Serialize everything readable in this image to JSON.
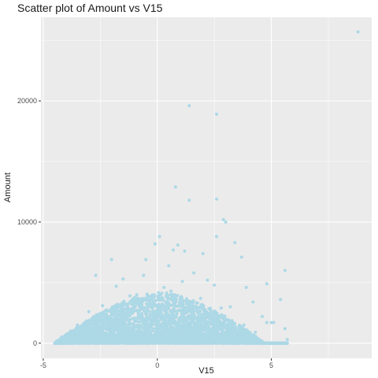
{
  "chart_data": {
    "type": "scatter",
    "title": "Scatter plot of Amount vs V15",
    "xlabel": "V15",
    "ylabel": "Amount",
    "xlim": [
      -5.1,
      9.4
    ],
    "ylim": [
      -1250,
      26900
    ],
    "x_ticks": [
      -5,
      0,
      5
    ],
    "x_tick_labels": [
      "-5",
      "0",
      "5"
    ],
    "y_ticks": [
      0,
      10000,
      20000
    ],
    "y_tick_labels": [
      "0",
      "10000",
      "20000"
    ],
    "point_color": "#add8e6",
    "panel_color": "#ebebeb",
    "grid": true,
    "legend": "none",
    "points": [
      {
        "x": 8.8,
        "y": 25700
      },
      {
        "x": 1.4,
        "y": 19600
      },
      {
        "x": 2.6,
        "y": 18900
      },
      {
        "x": 0.8,
        "y": 12900
      },
      {
        "x": 2.6,
        "y": 11900
      },
      {
        "x": 1.4,
        "y": 11800
      },
      {
        "x": 2.9,
        "y": 10200
      },
      {
        "x": 3.0,
        "y": 10000
      },
      {
        "x": 2.6,
        "y": 8800
      },
      {
        "x": 0.1,
        "y": 8800
      },
      {
        "x": 3.4,
        "y": 8300
      },
      {
        "x": 0.9,
        "y": 8100
      },
      {
        "x": -0.1,
        "y": 8200
      },
      {
        "x": 0.7,
        "y": 7700
      },
      {
        "x": 1.2,
        "y": 7600
      },
      {
        "x": 2.0,
        "y": 7400
      },
      {
        "x": 3.7,
        "y": 7100
      },
      {
        "x": -2.0,
        "y": 6900
      },
      {
        "x": -0.5,
        "y": 6900
      },
      {
        "x": 0.5,
        "y": 6400
      },
      {
        "x": 5.6,
        "y": 6000
      },
      {
        "x": -2.7,
        "y": 5600
      },
      {
        "x": 1.6,
        "y": 5800
      },
      {
        "x": 2.2,
        "y": 5200
      },
      {
        "x": 4.8,
        "y": 4900
      },
      {
        "x": 3.9,
        "y": 4600
      },
      {
        "x": 2.5,
        "y": 4800
      },
      {
        "x": -1.8,
        "y": 4700
      },
      {
        "x": -1.5,
        "y": 5300
      },
      {
        "x": 5.4,
        "y": 3600
      },
      {
        "x": 4.2,
        "y": 3400
      },
      {
        "x": -2.4,
        "y": 3100
      },
      {
        "x": 3.2,
        "y": 3000
      },
      {
        "x": -3.0,
        "y": 2600
      },
      {
        "x": 4.6,
        "y": 2200
      },
      {
        "x": 4.8,
        "y": 1700
      },
      {
        "x": 5.0,
        "y": 1700
      },
      {
        "x": 5.1,
        "y": 1700
      },
      {
        "x": -3.5,
        "y": 1500
      },
      {
        "x": 3.8,
        "y": 1500
      },
      {
        "x": -3.8,
        "y": 1000
      },
      {
        "x": 4.3,
        "y": 900
      },
      {
        "x": 5.6,
        "y": 1200
      },
      {
        "x": -4.2,
        "y": 500
      },
      {
        "x": -4.4,
        "y": 200
      },
      {
        "x": 5.7,
        "y": 300
      },
      {
        "x": 4.0,
        "y": 300
      },
      {
        "x": -2.2,
        "y": 2200
      },
      {
        "x": 1.9,
        "y": 3700
      },
      {
        "x": -1.2,
        "y": 3900
      },
      {
        "x": 0.3,
        "y": 4600
      },
      {
        "x": -0.6,
        "y": 5600
      },
      {
        "x": 1.1,
        "y": 5100
      },
      {
        "x": 2.8,
        "y": 2900
      },
      {
        "x": -2.7,
        "y": 1900
      },
      {
        "x": 3.3,
        "y": 1100
      },
      {
        "x": -3.2,
        "y": 700
      },
      {
        "x": 0.6,
        "y": 4300
      },
      {
        "x": -0.9,
        "y": 4000
      },
      {
        "x": 1.5,
        "y": 3300
      }
    ]
  }
}
